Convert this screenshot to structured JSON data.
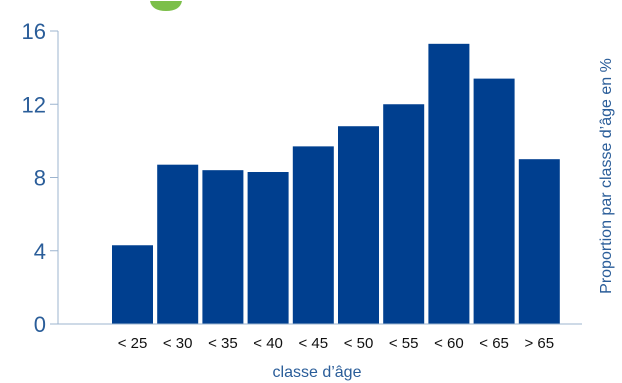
{
  "chart_data": {
    "type": "bar",
    "title": "",
    "xlabel": "classe d’âge",
    "ylabel": "Proportion par classe d’âge en %",
    "categories": [
      "< 25",
      "< 30",
      "< 35",
      "< 40",
      "< 45",
      "< 50",
      "< 55",
      "< 60",
      "< 65",
      "> 65"
    ],
    "values": [
      4.3,
      8.7,
      8.4,
      8.3,
      9.7,
      10.8,
      12.0,
      15.3,
      13.4,
      9.0
    ],
    "ylim": [
      0,
      16
    ],
    "yticks": [
      "0",
      "4",
      "8",
      "12",
      "16"
    ],
    "grid": false,
    "legend": "none"
  },
  "colors": {
    "bar": "#003f8f",
    "axis_text": "#2a5d99",
    "axis_line": "#9cb4cf",
    "title_fragment": "#7cbf4a"
  }
}
